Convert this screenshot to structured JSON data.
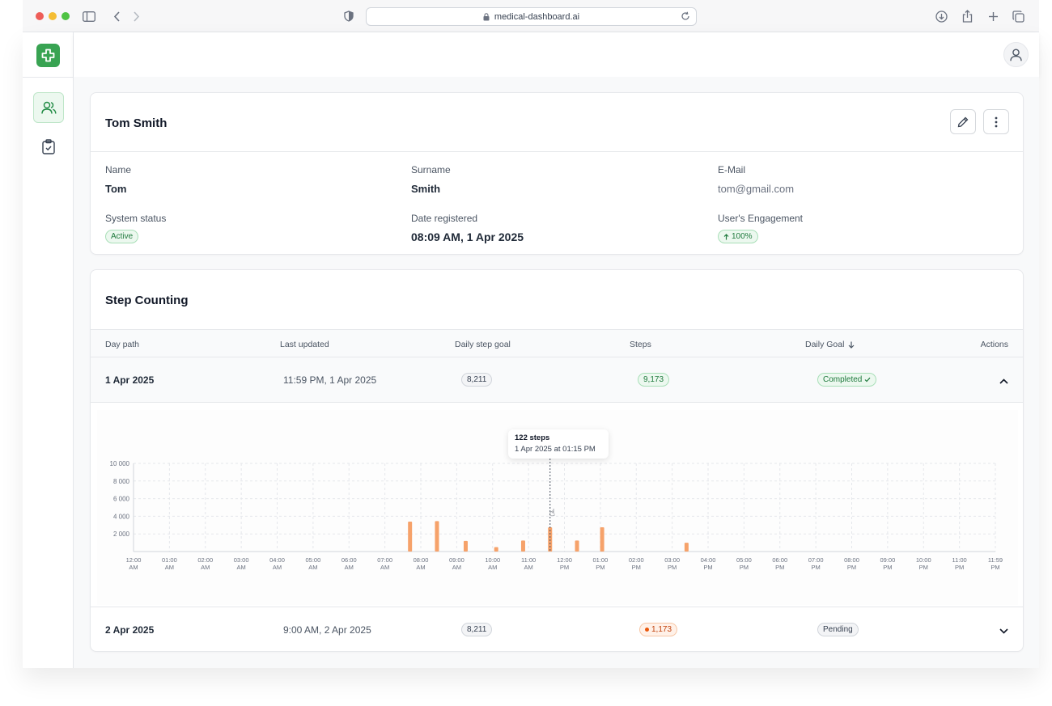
{
  "browser": {
    "url": "medical-dashboard.ai"
  },
  "profile": {
    "title": "Tom Smith",
    "fields": {
      "name_label": "Name",
      "name_value": "Tom",
      "surname_label": "Surname",
      "surname_value": "Smith",
      "email_label": "E-Mail",
      "email_value": "tom@gmail.com",
      "status_label": "System status",
      "status_value": "Active",
      "date_label": "Date registered",
      "date_value": "08:09 AM, 1 Apr 2025",
      "engagement_label": "User's Engagement",
      "engagement_value": "100%"
    }
  },
  "steps": {
    "title": "Step Counting",
    "columns": [
      "Day path",
      "Last updated",
      "Daily step goal",
      "Steps",
      "Daily Goal",
      "Actions"
    ],
    "rows": [
      {
        "day": "1 Apr 2025",
        "updated": "11:59 PM, 1 Apr 2025",
        "goal": "8,211",
        "steps": "9,173",
        "status": "Completed",
        "expanded": true
      },
      {
        "day": "2 Apr 2025",
        "updated": "9:00 AM, 2 Apr 2025",
        "goal": "8,211",
        "steps": "1,173",
        "status": "Pending",
        "expanded": false
      }
    ],
    "tooltip": {
      "steps": "122 steps",
      "date": "1 Apr 2025 at 01:15 PM"
    }
  },
  "colors": {
    "accent": "#38a352",
    "bar": "#f6a26a"
  },
  "chart_data": {
    "type": "bar",
    "x_ticks": [
      [
        "12:00",
        "AM"
      ],
      [
        "01:00",
        "AM"
      ],
      [
        "02:00",
        "AM"
      ],
      [
        "03:00",
        "AM"
      ],
      [
        "04:00",
        "AM"
      ],
      [
        "05:00",
        "AM"
      ],
      [
        "06:00",
        "AM"
      ],
      [
        "07:00",
        "AM"
      ],
      [
        "08:00",
        "AM"
      ],
      [
        "09:00",
        "AM"
      ],
      [
        "10:00",
        "AM"
      ],
      [
        "11:00",
        "AM"
      ],
      [
        "12:00",
        "PM"
      ],
      [
        "01:00",
        "PM"
      ],
      [
        "02:00",
        "PM"
      ],
      [
        "03:00",
        "PM"
      ],
      [
        "04:00",
        "PM"
      ],
      [
        "05:00",
        "PM"
      ],
      [
        "06:00",
        "PM"
      ],
      [
        "07:00",
        "PM"
      ],
      [
        "08:00",
        "PM"
      ],
      [
        "09:00",
        "PM"
      ],
      [
        "10:00",
        "PM"
      ],
      [
        "11:00",
        "PM"
      ],
      [
        "11:59",
        "PM"
      ]
    ],
    "y_ticks": [
      "2 000",
      "4 000",
      "6 000",
      "8 000",
      "10 000"
    ],
    "ylim": [
      0,
      10000
    ],
    "bars": [
      {
        "hour": 7.7,
        "value": 3400
      },
      {
        "hour": 8.45,
        "value": 3450
      },
      {
        "hour": 9.25,
        "value": 1200
      },
      {
        "hour": 10.1,
        "value": 500
      },
      {
        "hour": 10.85,
        "value": 1250
      },
      {
        "hour": 11.6,
        "value": 2750
      },
      {
        "hour": 12.35,
        "value": 1250
      },
      {
        "hour": 13.05,
        "value": 2750
      },
      {
        "hour": 15.4,
        "value": 1000
      }
    ],
    "hover_hour": 11.6
  }
}
